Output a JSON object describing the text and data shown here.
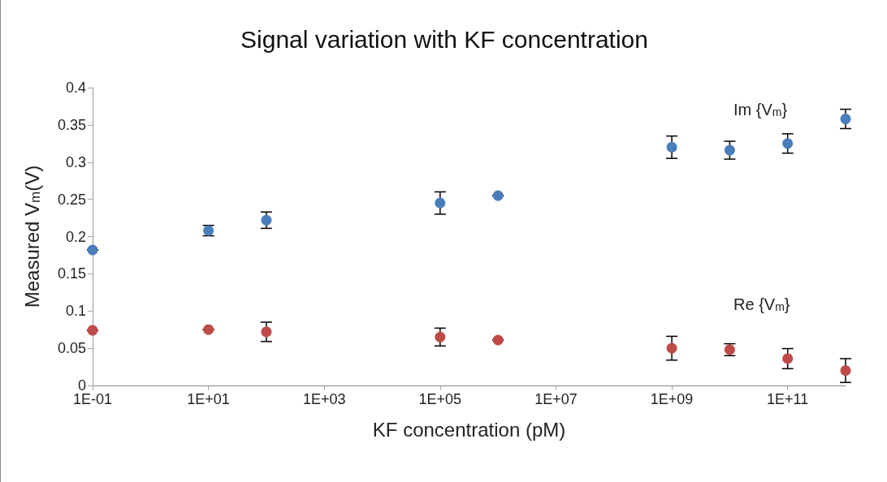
{
  "chart_data": {
    "type": "scatter",
    "title": "Signal variation with KF concentration",
    "xlabel": "KF concentration (pM)",
    "ylabel": "Measured V$_{m}$(V)",
    "x": [
      0.1,
      10,
      100,
      100000,
      1000000,
      1000000000,
      10000000000,
      100000000000,
      1000000000000
    ],
    "series": [
      {
        "name": "Im {V$_{m}$}",
        "color": "#4a7ebb",
        "values": [
          0.182,
          0.208,
          0.222,
          0.245,
          0.255,
          0.32,
          0.316,
          0.325,
          0.358
        ],
        "errors": [
          null,
          0.007,
          0.011,
          0.015,
          null,
          0.015,
          0.012,
          0.013,
          0.013
        ]
      },
      {
        "name": "Re {V$_{m}$}",
        "color": "#be4b48",
        "values": [
          0.074,
          0.075,
          0.072,
          0.065,
          0.061,
          0.05,
          0.048,
          0.036,
          0.02
        ],
        "errors": [
          null,
          null,
          0.013,
          0.012,
          null,
          0.016,
          0.008,
          0.0135,
          0.016
        ]
      }
    ],
    "log": "x",
    "xlim": [
      0.1,
      1000000000000
    ],
    "xticks": [
      {
        "value": 0.1,
        "label": "1E-01"
      },
      {
        "value": 10,
        "label": "1E+01"
      },
      {
        "value": 1000,
        "label": "1E+03"
      },
      {
        "value": 100000,
        "label": "1E+05"
      },
      {
        "value": 10000000,
        "label": "1E+07"
      },
      {
        "value": 1000000000,
        "label": "1E+09"
      },
      {
        "value": 100000000000,
        "label": "1E+11"
      }
    ],
    "ylim": [
      0,
      0.4
    ],
    "yticks": [
      0,
      0.05,
      0.1,
      0.15,
      0.2,
      0.25,
      0.3,
      0.35,
      0.4
    ],
    "grid": false,
    "legend": false,
    "marker": "circle"
  }
}
